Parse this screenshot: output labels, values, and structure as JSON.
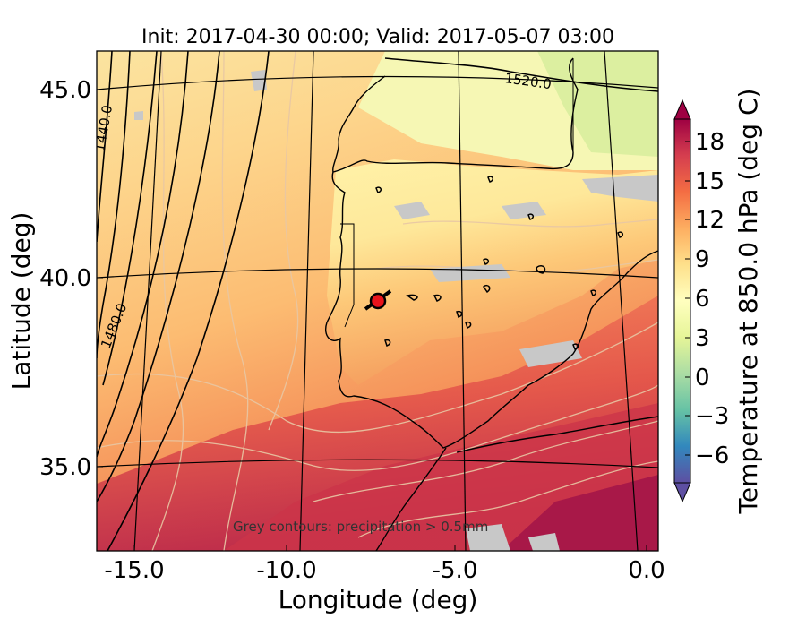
{
  "title": "Init: 2017-04-30 00:00; Valid: 2017-05-07 03:00",
  "x_axis": {
    "label": "Longitude (deg)",
    "range": [
      -16,
      0
    ],
    "ticks": [
      "-15.0",
      "-10.0",
      "-5.0",
      "0.0"
    ]
  },
  "y_axis": {
    "label": "Latitude (deg)",
    "range": [
      32.8,
      46.2
    ],
    "ticks": [
      "45.0",
      "40.0",
      "35.0"
    ]
  },
  "colorbar": {
    "label": "Temperature at 850.0 hPa (deg C)",
    "ticks": [
      "18",
      "15",
      "12",
      "9",
      "6",
      "3",
      "0",
      "−3",
      "−6"
    ],
    "range": [
      -8,
      20
    ],
    "colormap": "Spectral_r",
    "extend": "both"
  },
  "contour_labels": {
    "c1440": "1440.0",
    "c1480": "1480.0",
    "c1520": "1520.0"
  },
  "annotation": "Grey contours: precipitation > 0.5mm",
  "marker": {
    "lon": -7.6,
    "lat": 39.3,
    "color": "#e8141c"
  },
  "colors": {
    "precip_grey": "#c8c8c8",
    "warm_red": "#b51a4a",
    "cool_yellow": "#eef5a8"
  }
}
